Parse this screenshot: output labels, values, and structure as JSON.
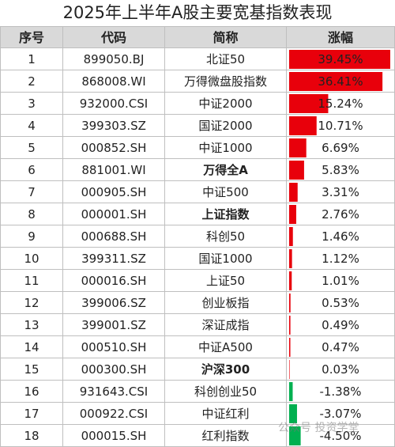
{
  "title": "2025年上半年A股主要宽基指数表现",
  "header": {
    "no": "序号",
    "code": "代码",
    "name": "简称",
    "change": "涨幅"
  },
  "watermark": "公众号 投资学堂",
  "colors": {
    "positive": "#e8000b",
    "negative": "#00b050",
    "header_bg": "#d9d9d9"
  },
  "chart_data": {
    "type": "table",
    "columns": [
      "序号",
      "代码",
      "简称",
      "涨幅"
    ],
    "rows": [
      {
        "no": "1",
        "code": "899050.BJ",
        "name": "北证50",
        "change": "39.45%",
        "value": 39.45,
        "bold": false
      },
      {
        "no": "2",
        "code": "868008.WI",
        "name": "万得微盘股指数",
        "change": "36.41%",
        "value": 36.41,
        "bold": false
      },
      {
        "no": "3",
        "code": "932000.CSI",
        "name": "中证2000",
        "change": "15.24%",
        "value": 15.24,
        "bold": false
      },
      {
        "no": "4",
        "code": "399303.SZ",
        "name": "国证2000",
        "change": "10.71%",
        "value": 10.71,
        "bold": false
      },
      {
        "no": "5",
        "code": "000852.SH",
        "name": "中证1000",
        "change": "6.69%",
        "value": 6.69,
        "bold": false
      },
      {
        "no": "6",
        "code": "881001.WI",
        "name": "万得全A",
        "change": "5.83%",
        "value": 5.83,
        "bold": true
      },
      {
        "no": "7",
        "code": "000905.SH",
        "name": "中证500",
        "change": "3.31%",
        "value": 3.31,
        "bold": false
      },
      {
        "no": "8",
        "code": "000001.SH",
        "name": "上证指数",
        "change": "2.76%",
        "value": 2.76,
        "bold": true
      },
      {
        "no": "9",
        "code": "000688.SH",
        "name": "科创50",
        "change": "1.46%",
        "value": 1.46,
        "bold": false
      },
      {
        "no": "10",
        "code": "399311.SZ",
        "name": "国证1000",
        "change": "1.12%",
        "value": 1.12,
        "bold": false
      },
      {
        "no": "11",
        "code": "000016.SH",
        "name": "上证50",
        "change": "1.01%",
        "value": 1.01,
        "bold": false
      },
      {
        "no": "12",
        "code": "399006.SZ",
        "name": "创业板指",
        "change": "0.53%",
        "value": 0.53,
        "bold": false
      },
      {
        "no": "13",
        "code": "399001.SZ",
        "name": "深证成指",
        "change": "0.49%",
        "value": 0.49,
        "bold": false
      },
      {
        "no": "14",
        "code": "000510.SH",
        "name": "中证A500",
        "change": "0.47%",
        "value": 0.47,
        "bold": false
      },
      {
        "no": "15",
        "code": "000300.SH",
        "name": "沪深300",
        "change": "0.03%",
        "value": 0.03,
        "bold": true
      },
      {
        "no": "16",
        "code": "931643.CSI",
        "name": "科创创业50",
        "change": "-1.38%",
        "value": -1.38,
        "bold": false
      },
      {
        "no": "17",
        "code": "000922.CSI",
        "name": "中证红利",
        "change": "-3.07%",
        "value": -3.07,
        "bold": false
      },
      {
        "no": "18",
        "code": "000015.SH",
        "name": "红利指数",
        "change": "-4.50%",
        "value": -4.5,
        "bold": false
      }
    ]
  }
}
